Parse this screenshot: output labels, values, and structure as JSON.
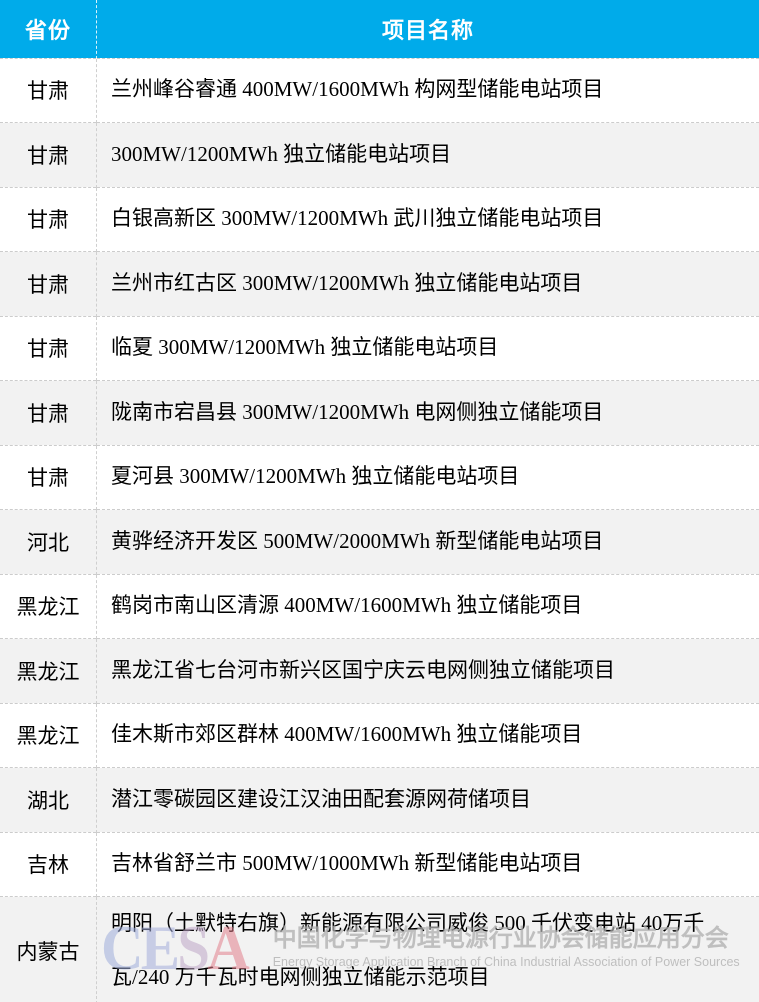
{
  "table": {
    "columns": [
      {
        "label": "省份"
      },
      {
        "label": "项目名称"
      }
    ],
    "rows": [
      {
        "province": "甘肃",
        "project": "兰州峰谷睿通 400MW/1600MWh 构网型储能电站项目"
      },
      {
        "province": "甘肃",
        "project": "300MW/1200MWh 独立储能电站项目"
      },
      {
        "province": "甘肃",
        "project": "白银高新区 300MW/1200MWh 武川独立储能电站项目"
      },
      {
        "province": "甘肃",
        "project": "兰州市红古区 300MW/1200MWh 独立储能电站项目"
      },
      {
        "province": "甘肃",
        "project": "临夏 300MW/1200MWh 独立储能电站项目"
      },
      {
        "province": "甘肃",
        "project": "陇南市宕昌县 300MW/1200MWh 电网侧独立储能项目"
      },
      {
        "province": "甘肃",
        "project": "夏河县 300MW/1200MWh 独立储能电站项目"
      },
      {
        "province": "河北",
        "project": "黄骅经济开发区 500MW/2000MWh 新型储能电站项目"
      },
      {
        "province": "黑龙江",
        "project": "鹤岗市南山区清源 400MW/1600MWh 独立储能项目"
      },
      {
        "province": "黑龙江",
        "project": "黑龙江省七台河市新兴区国宁庆云电网侧独立储能项目"
      },
      {
        "province": "黑龙江",
        "project": "佳木斯市郊区群林 400MW/1600MWh 独立储能项目"
      },
      {
        "province": "湖北",
        "project": "潜江零碳园区建设江汉油田配套源网荷储项目"
      },
      {
        "province": "吉林",
        "project": "吉林省舒兰市 500MW/1000MWh 新型储能电站项目"
      },
      {
        "province": "内蒙古",
        "project": "明阳（土默特右旗）新能源有限公司威俊 500 千伏变电站 40万千瓦/240 万千瓦时电网侧独立储能示范项目"
      }
    ]
  },
  "watermark": {
    "logo_letters": [
      "C",
      "E",
      "S",
      "A"
    ],
    "cn_text": "中国化学与物理电源行业协会储能应用分会",
    "en_text": "Energy Storage Application Branch of China Industrial Association of Power Sources"
  },
  "colors": {
    "header_bg": "#00ABEA",
    "header_text": "#FFFFFF",
    "row_even_bg": "#F2F2F2",
    "row_odd_bg": "#FFFFFF",
    "divider_dashed": "#CCCCCC",
    "body_text": "#000000",
    "watermark_blue": "#A3AEDD",
    "watermark_red": "#E2808D",
    "watermark_gray": "#ACACAC"
  }
}
